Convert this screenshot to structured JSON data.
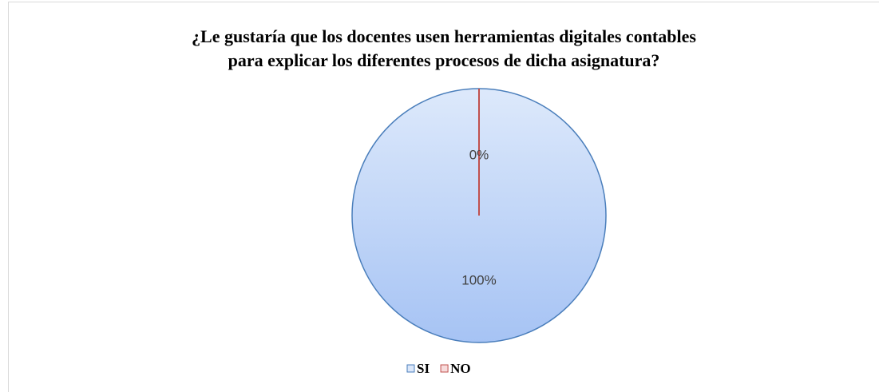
{
  "chart_data": {
    "type": "pie",
    "title": [
      "¿Le gustaría que los docentes usen herramientas digitales contables",
      "para explicar los diferentes procesos de dicha asignatura?"
    ],
    "categories": [
      "SI",
      "NO"
    ],
    "values": [
      100,
      0
    ],
    "value_labels": [
      "100%",
      "0%"
    ],
    "colors": [
      "#a9c6f4",
      "#c0504d"
    ],
    "legend": "bottom"
  }
}
